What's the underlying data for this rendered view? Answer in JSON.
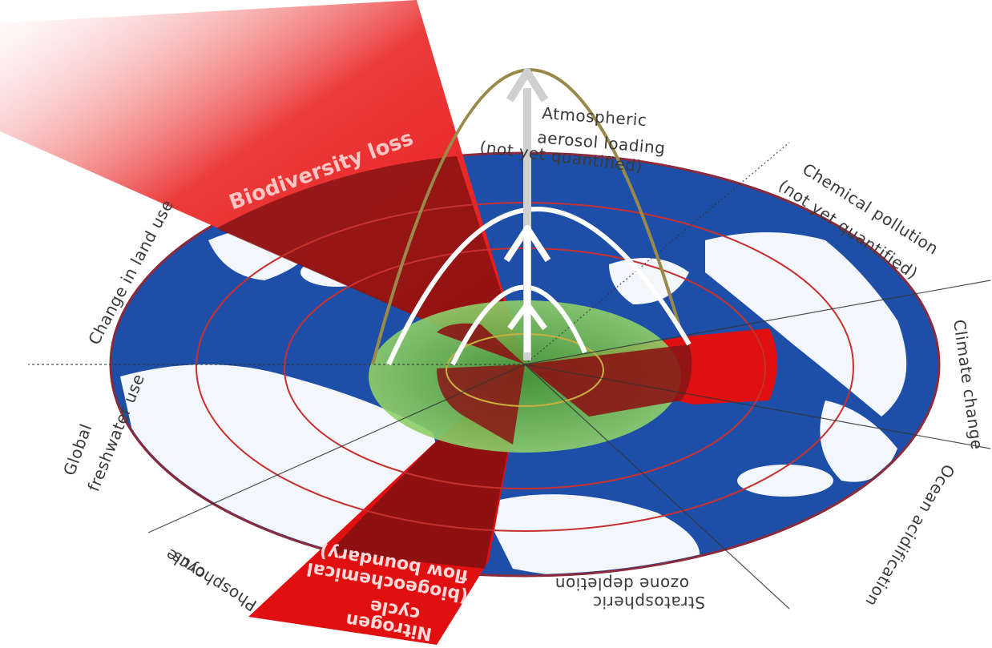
{
  "labels": {
    "aerosol_l1": "Atmospheric",
    "aerosol_l2": "aerosol loading",
    "aerosol_l3": "(not yet quantified)",
    "chemical_l1": "Chemical pollution",
    "chemical_l2": "(not yet quantified)",
    "climate": "Climate change",
    "ocean": "Ocean acidification",
    "ozone_l1": "Stratospheric",
    "ozone_l2": "ozone depletion",
    "nitrogen_l1": "Nitrogen",
    "nitrogen_l2": "cycle",
    "nitrogen_l3": "(biogeochemical",
    "nitrogen_l4": "flow boundary)",
    "phosphorus_l1": "Phosphorus",
    "phosphorus_l2": "cycle",
    "freshwater_l1": "Global",
    "freshwater_l2": "freshwater use",
    "landuse": "Change in land use",
    "biodiversity": "Biodiversity loss"
  },
  "colors": {
    "ocean": "#1e4fa8",
    "land": "#ffffff",
    "safe_zone": "#6fbf4a",
    "exceeded": "#e01010",
    "overlap": "#7a1010",
    "ring": "#c83030",
    "arrow": "#d0d0d0",
    "parabola_outer": "#9a8a4a"
  },
  "icons": {
    "earth": "earth-map-icon",
    "arrow": "arrow-up-icon"
  }
}
